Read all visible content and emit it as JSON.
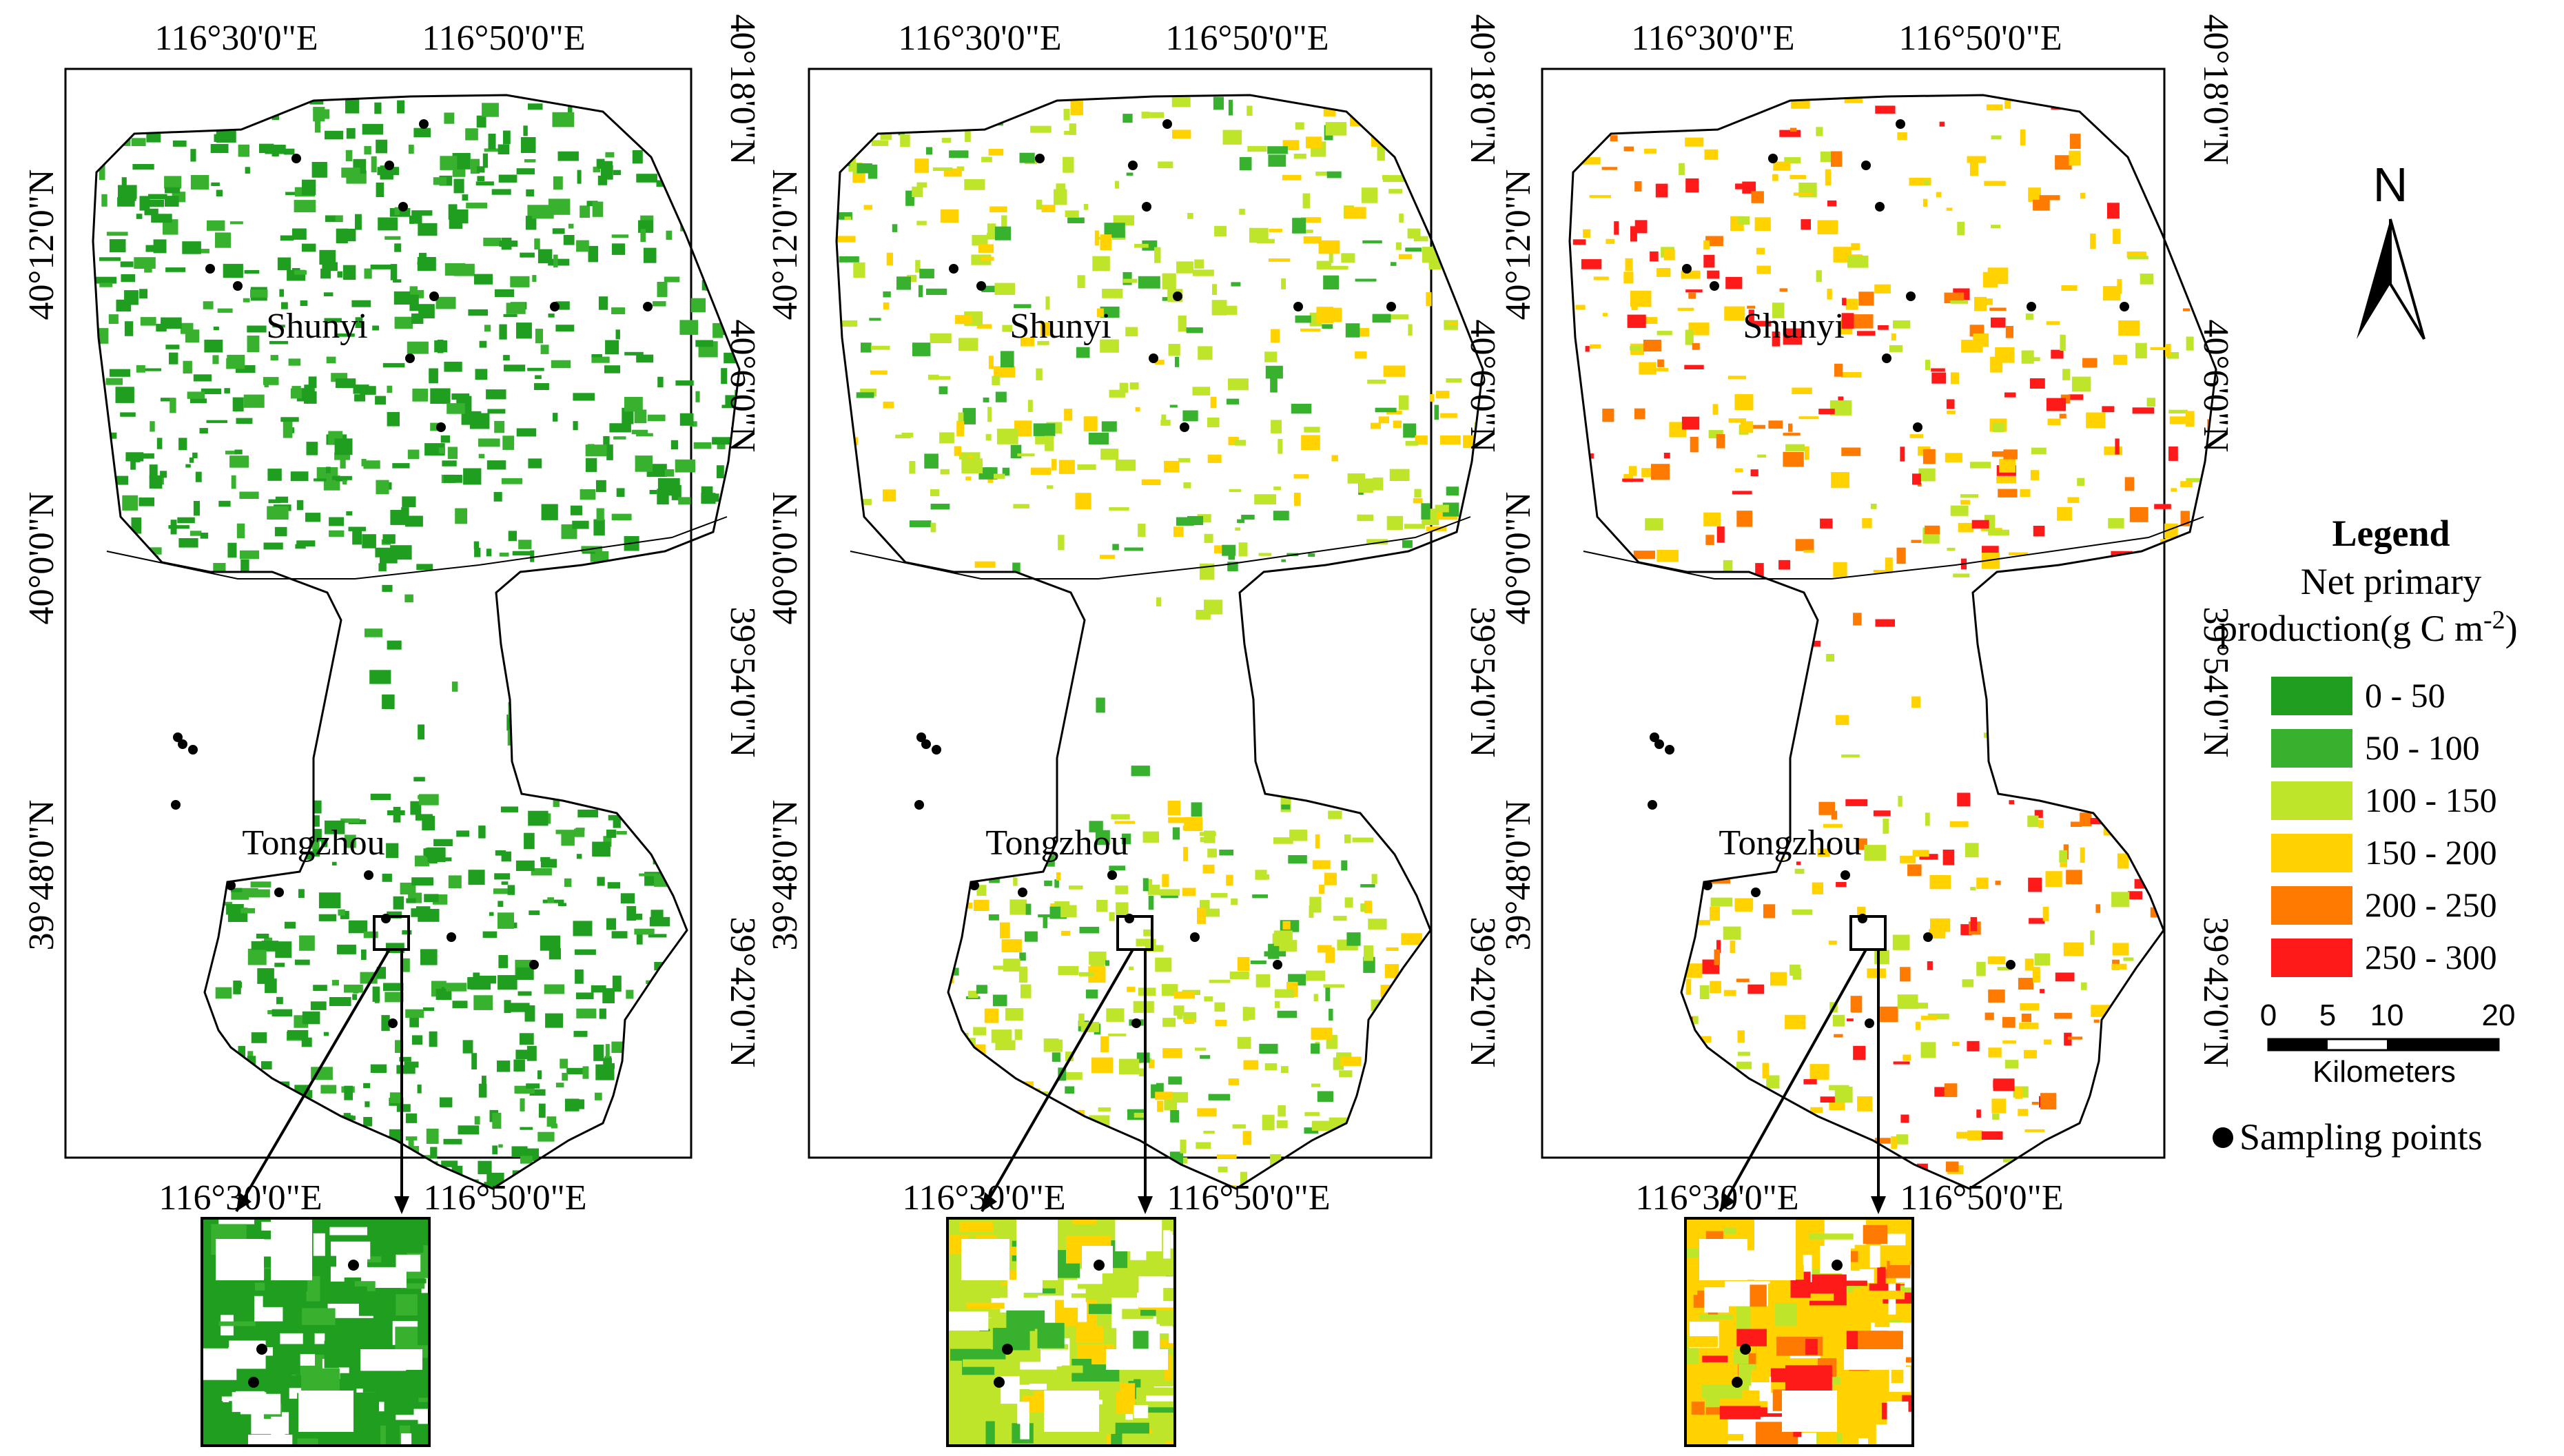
{
  "colors": {
    "0-50": "#1f9e1f",
    "50-100": "#38b12f",
    "100-150": "#bfe52a",
    "150-200": "#ffd200",
    "200-250": "#ff7a00",
    "250-300": "#ff1a1a",
    "boundary": "#000000",
    "point": "#000000"
  },
  "coords": {
    "lon_left": "116°30'0\"E",
    "lon_right": "116°50'0\"E",
    "lat_left": [
      "40°12'0\"N",
      "40°0'0\"N",
      "39°48'0\"N"
    ],
    "lat_right": [
      "40°18'0\"N",
      "40°6'0\"N",
      "39°54'0\"N",
      "39°42'0\"N"
    ]
  },
  "places": {
    "north": "Shunyi",
    "south": "Tongzhou"
  },
  "maps": [
    {
      "id": "map-1",
      "palette": [
        "0-50",
        "0-50",
        "50-100"
      ],
      "density": 1.0
    },
    {
      "id": "map-2",
      "palette": [
        "100-150",
        "100-150",
        "50-100",
        "150-200"
      ],
      "density": 0.8
    },
    {
      "id": "map-3",
      "palette": [
        "150-200",
        "150-200",
        "100-150",
        "200-250",
        "250-300"
      ],
      "density": 0.55
    }
  ],
  "legend": {
    "title": "Legend",
    "subtitle_line1": "Net primary",
    "subtitle_line2": "production(g C m",
    "subtitle_sup": "-2",
    "subtitle_end": ")",
    "items": [
      {
        "label": "0 - 50",
        "color_key": "0-50"
      },
      {
        "label": "50 - 100",
        "color_key": "50-100"
      },
      {
        "label": "100 - 150",
        "color_key": "100-150"
      },
      {
        "label": "150 - 200",
        "color_key": "150-200"
      },
      {
        "label": "200 - 250",
        "color_key": "200-250"
      },
      {
        "label": "250 - 300",
        "color_key": "250-300"
      }
    ],
    "sampling_label": "Sampling points"
  },
  "scale_bar": {
    "ticks": [
      "0",
      "5",
      "10",
      "20"
    ],
    "unit": "Kilometers"
  },
  "north_arrow": {
    "label": "N"
  }
}
